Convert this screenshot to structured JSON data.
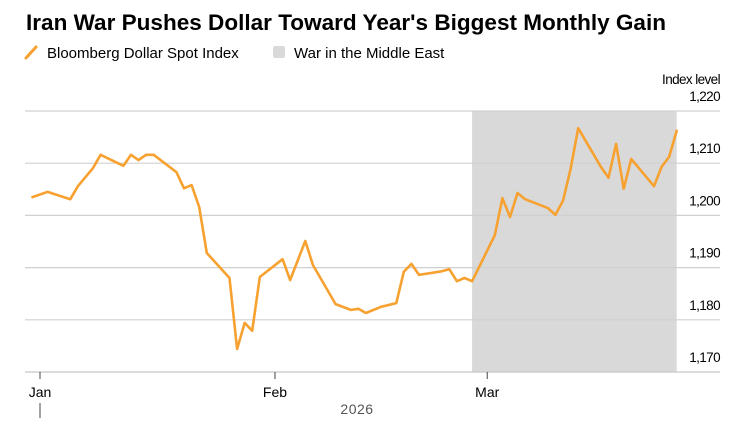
{
  "chart_data": {
    "type": "line",
    "title": "Iran War Pushes Dollar Toward Year's Biggest Monthly Gain",
    "ylabel": "Index level",
    "xlabel": "2026",
    "x_unit": "days since Jan 1, 2026",
    "ylim": [
      1170,
      1220
    ],
    "yticks": [
      1220,
      1210,
      1200,
      1190,
      1180,
      1170
    ],
    "ytick_labels": [
      "1,220",
      "1,210",
      "1,200",
      "1,190",
      "1,180",
      "1,170"
    ],
    "xticks": [
      0,
      31,
      59
    ],
    "xtick_labels": [
      "Jan",
      "Feb",
      "Mar"
    ],
    "year_label": "2026",
    "grid": true,
    "legend": [
      {
        "label": "Bloomberg Dollar Spot Index",
        "kind": "line"
      },
      {
        "label": "War in the Middle East",
        "kind": "shaded"
      }
    ],
    "shaded_region": {
      "label": "War in the Middle East",
      "x_start": 57,
      "x_end": 84
    },
    "series": [
      {
        "name": "Bloomberg Dollar Spot Index",
        "color": "#f7a130",
        "x": [
          -1,
          1,
          4,
          5,
          7,
          8,
          11,
          12,
          13,
          14,
          15,
          18,
          19,
          20,
          21,
          22,
          25,
          26,
          27,
          28,
          29,
          32,
          33,
          35,
          36,
          39,
          41,
          42,
          43,
          45,
          47,
          48,
          49,
          50,
          53,
          54,
          55,
          56,
          57,
          60,
          61,
          62,
          63,
          64,
          67,
          68,
          69,
          70,
          71,
          74,
          75,
          76,
          77,
          78,
          81,
          82,
          83,
          84
        ],
        "values": [
          1203.5,
          1204.5,
          1203.1,
          1205.6,
          1209.1,
          1211.6,
          1209.5,
          1211.6,
          1210.6,
          1211.6,
          1211.6,
          1208.3,
          1205.2,
          1205.8,
          1201.6,
          1192.8,
          1188.0,
          1174.4,
          1179.4,
          1177.9,
          1188.2,
          1191.6,
          1187.6,
          1195.1,
          1190.5,
          1183.0,
          1181.9,
          1182.1,
          1181.3,
          1182.5,
          1183.2,
          1189.2,
          1190.7,
          1188.6,
          1189.3,
          1189.7,
          1187.4,
          1188.0,
          1187.4,
          1196.2,
          1203.3,
          1199.7,
          1204.3,
          1203.1,
          1201.4,
          1200.1,
          1202.8,
          1208.9,
          1216.7,
          1209.3,
          1207.2,
          1213.7,
          1205.1,
          1210.8,
          1205.6,
          1209.3,
          1211.2,
          1216.2
        ]
      }
    ]
  },
  "colors": {
    "line": "#f7a130",
    "shade": "#d9d9d9",
    "grid": "#d0d0d0"
  }
}
